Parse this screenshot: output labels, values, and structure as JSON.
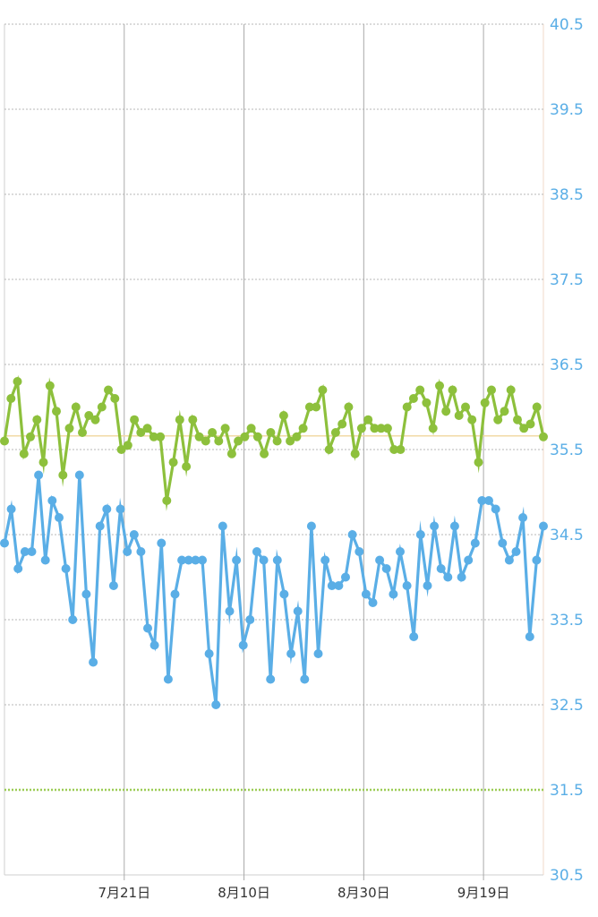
{
  "chart_data": {
    "type": "line",
    "title": "",
    "xlabel": "",
    "ylabel": "",
    "ylim": [
      30.5,
      40.5
    ],
    "y_ticks": [
      "40.5",
      "39.5",
      "38.5",
      "37.5",
      "36.5",
      "35.5",
      "34.5",
      "33.5",
      "32.5",
      "31.5",
      "30.5"
    ],
    "x_tick_labels": [
      "7月21日",
      "8月10日",
      "8月30日",
      "9月19日"
    ],
    "x_tick_positions": [
      20,
      40,
      60,
      80
    ],
    "xlim": [
      0,
      90
    ],
    "grid": true,
    "colors": {
      "green": "#8dc03c",
      "blue": "#5aaee6",
      "average_line": "#f2d9a6",
      "threshold_line": "#9ccc55",
      "grid": "#b7b7b7",
      "vertical_grid": "#aaaaaa"
    },
    "reference_lines": [
      {
        "kind": "average",
        "y": 35.66,
        "color": "#f2d9a6"
      },
      {
        "kind": "threshold",
        "y": 31.5,
        "color": "#9ccc55"
      }
    ],
    "series": [
      {
        "color": "#8dc03c",
        "values": [
          35.6,
          36.1,
          36.3,
          35.45,
          35.65,
          35.85,
          35.35,
          36.25,
          35.95,
          35.2,
          35.75,
          36.0,
          35.7,
          35.9,
          35.85,
          36.0,
          36.2,
          36.1,
          35.5,
          35.55,
          35.85,
          35.7,
          35.75,
          35.65,
          35.65,
          34.9,
          35.35,
          35.85,
          35.3,
          35.85,
          35.65,
          35.6,
          35.7,
          35.6,
          35.75,
          35.45,
          35.6,
          35.65,
          35.75,
          35.65,
          35.45,
          35.7,
          35.6,
          35.9,
          35.6,
          35.65,
          35.75,
          36.0,
          36.0,
          36.2,
          35.5,
          35.7,
          35.8,
          36.0,
          35.45,
          35.75,
          35.85,
          35.75,
          35.75,
          35.75,
          35.5,
          35.5,
          36.0,
          36.1,
          36.2,
          36.05,
          35.75,
          36.25,
          35.95,
          36.2,
          35.9,
          36.0,
          35.85,
          35.35,
          36.05,
          36.2,
          35.85,
          35.95,
          36.2,
          35.85,
          35.75,
          35.8,
          36.0,
          35.65
        ]
      },
      {
        "color": "#5aaee6",
        "values": [
          34.4,
          34.8,
          34.1,
          34.3,
          34.3,
          35.2,
          34.2,
          34.9,
          34.7,
          34.1,
          33.5,
          35.2,
          33.8,
          33.0,
          34.6,
          34.8,
          33.9,
          34.8,
          34.3,
          34.5,
          34.3,
          33.4,
          33.2,
          34.4,
          32.8,
          33.8,
          34.2,
          34.2,
          34.2,
          34.2,
          33.1,
          32.5,
          34.6,
          33.6,
          34.2,
          33.2,
          33.5,
          34.3,
          34.2,
          32.8,
          34.2,
          33.8,
          33.1,
          33.6,
          32.8,
          34.6,
          33.1,
          34.2,
          33.9,
          33.9,
          34.0,
          34.5,
          34.3,
          33.8,
          33.7,
          34.2,
          34.1,
          33.8,
          34.3,
          33.9,
          33.3,
          34.5,
          33.9,
          34.6,
          34.1,
          34.0,
          34.6,
          34.0,
          34.2,
          34.4,
          34.9,
          34.9,
          34.8,
          34.4,
          34.2,
          34.3,
          34.7,
          33.3,
          34.2,
          34.6
        ]
      }
    ]
  }
}
